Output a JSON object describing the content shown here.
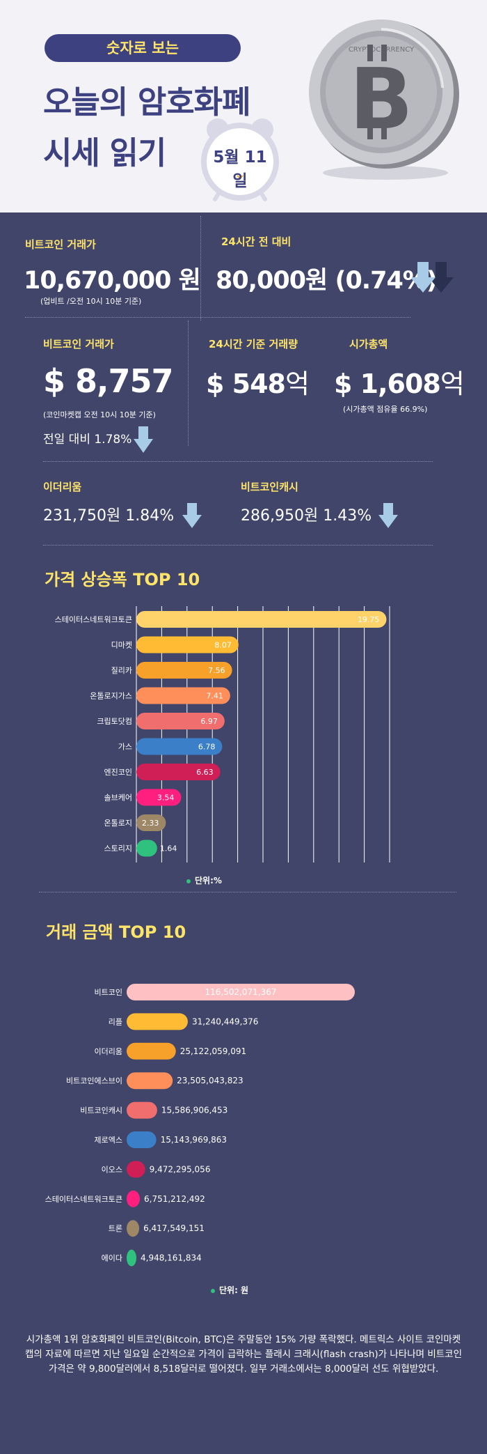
{
  "header": {
    "pill": "숫자로 보는",
    "headline_1": "오늘의 암호화폐",
    "headline_2": "시세 읽기",
    "date": "5월 11일",
    "coin_text": "CRYPTOCURRENCY"
  },
  "btc_krw": {
    "label": "비트코인 거래가",
    "value": "10,670,000 원",
    "note": "(업비트 /오전 10시 10분 기준)"
  },
  "change_24h": {
    "label": "24시간 전 대비",
    "value": "80,000원 (0.74%)"
  },
  "btc_usd": {
    "label": "비트코인 거래가",
    "value": "$ 8,757",
    "note": "(코인마켓캡 오전 10시 10분 기준)",
    "change": "전일 대비 1.78%"
  },
  "volume_24h": {
    "label": "24시간 기준 거래량",
    "value": "$ 548",
    "unit": "억"
  },
  "market_cap": {
    "label": "시가총액",
    "value": "$ 1,608",
    "unit": "억",
    "note": "(시가총액 점유율 66.9%)"
  },
  "eth": {
    "label": "이더리움",
    "value": "231,750원  1.84%"
  },
  "bch": {
    "label": "비트코인캐시",
    "value": "286,950원  1.43%"
  },
  "colors": {
    "background": "#41456a",
    "accent": "#ffe46a",
    "down_arrow": "#a8cbe8"
  },
  "chart_data": [
    {
      "type": "bar",
      "orientation": "horizontal",
      "title": "가격 상승폭 TOP 10",
      "unit_label": "단위:%",
      "categories": [
        "스테이터스네트워크토큰",
        "디마켓",
        "질리카",
        "온톨로지가스",
        "크립토닷컴",
        "가스",
        "엔진코인",
        "솔브케어",
        "온톨로지",
        "스토리지"
      ],
      "values": [
        19.75,
        8.07,
        7.56,
        7.41,
        6.97,
        6.78,
        6.63,
        3.54,
        2.33,
        1.64
      ],
      "value_labels": [
        "19.75",
        "8.07",
        "7.56",
        "7.41",
        "6.97",
        "6.78",
        "6.63",
        "3.54",
        "2.33",
        "1.64"
      ],
      "colors": [
        "#ffd36a",
        "#ffbb33",
        "#f7a02a",
        "#ff8f5a",
        "#f06e6e",
        "#3a7fc7",
        "#d01e57",
        "#ff1f7f",
        "#9e8766",
        "#2ec27e"
      ],
      "xlim": [
        0,
        20
      ],
      "grid": true
    },
    {
      "type": "bar",
      "orientation": "horizontal",
      "title": "거래 금액 TOP 10",
      "unit_label": "단위: 원",
      "categories": [
        "비트코인",
        "리플",
        "이더리움",
        "비트코인에스브이",
        "비트코인캐시",
        "제로엑스",
        "이오스",
        "스테이터스네트워크토큰",
        "트론",
        "에이다"
      ],
      "values": [
        116502071367,
        31240449376,
        25122059091,
        23505043823,
        15586906453,
        15143969863,
        9472295056,
        6751212492,
        6417549151,
        4948161834
      ],
      "value_labels": [
        "116,502,071,367",
        "31,240,449,376",
        "25,122,059,091",
        "23,505,043,823",
        "15,586,906,453",
        "15,143,969,863",
        "9,472,295,056",
        "6,751,212,492",
        "6,417,549,151",
        "4,948,161,834"
      ],
      "colors": [
        "#ffc0c4",
        "#ffbb33",
        "#f7a02a",
        "#ff8f5a",
        "#f06e6e",
        "#3a7fc7",
        "#d01e57",
        "#ff1f7f",
        "#9e8766",
        "#2ec27e"
      ],
      "grid": false
    }
  ],
  "footer": "시가총액 1위 암호화폐인 비트코인(Bitcoin, BTC)은 주말동안 15% 가량 폭락했다. 메트릭스 사이트 코인마켓캡의 자료에 따르면 지난 일요일 순간적으로 가격이 급락하는 플래시 크래시(flash crash)가 나타나며 비트코인 가격은 약 9,800달러에서 8,518달러로 떨어졌다. 일부 거래소에서는 8,000달러 선도 위협받았다."
}
